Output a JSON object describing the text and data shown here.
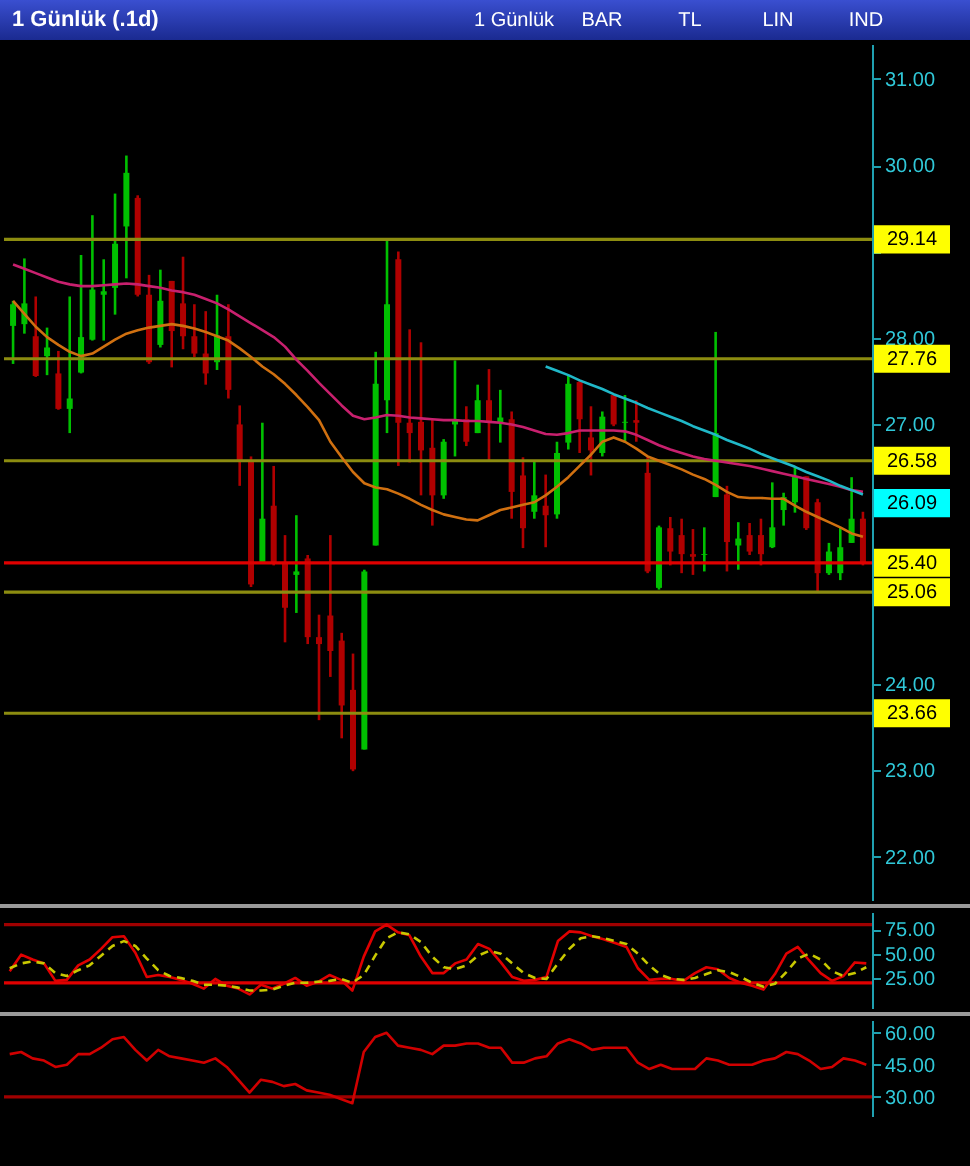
{
  "chart_data": [
    {
      "type": "candlestick",
      "title": "1 Günlük (.1d)",
      "annotations": [
        "1 Günlük",
        "BAR",
        "TL",
        "LIN",
        "IND",
        {
          "text": "26.09",
          "y": 26.09
        }
      ],
      "categories": [
        null,
        null,
        null,
        null,
        null,
        null,
        null,
        null,
        null,
        null,
        null,
        null,
        null,
        null,
        null,
        null,
        null,
        null,
        null,
        null,
        null,
        null,
        null,
        null,
        null,
        null,
        null,
        null,
        null,
        null,
        null,
        null,
        null,
        null,
        null,
        null,
        null,
        null,
        null,
        null,
        null,
        null,
        null,
        null,
        null,
        null,
        null,
        null,
        null,
        null,
        null,
        null,
        null,
        null,
        null,
        null,
        null,
        null,
        null,
        null,
        null,
        null,
        null,
        null,
        null,
        null,
        null,
        null,
        null,
        null,
        null,
        null,
        null,
        null,
        null,
        null
      ],
      "ohlc": [
        [
          28.14,
          28.43,
          27.7,
          28.39
        ],
        [
          28.16,
          28.92,
          28.05,
          28.4
        ],
        [
          28.02,
          28.48,
          27.55,
          27.56
        ],
        [
          27.79,
          28.12,
          27.57,
          27.89
        ],
        [
          27.59,
          27.85,
          27.17,
          27.18
        ],
        [
          27.18,
          28.48,
          26.9,
          27.3
        ],
        [
          27.6,
          28.96,
          27.59,
          28.01
        ],
        [
          27.98,
          29.42,
          27.97,
          28.56
        ],
        [
          28.5,
          28.91,
          27.97,
          28.54
        ],
        [
          28.58,
          29.67,
          28.27,
          29.09
        ],
        [
          29.29,
          30.11,
          28.69,
          29.91
        ],
        [
          29.62,
          29.65,
          28.48,
          28.5
        ],
        [
          28.5,
          28.73,
          27.7,
          27.72
        ],
        [
          27.92,
          28.79,
          27.89,
          28.43
        ],
        [
          28.66,
          28.66,
          27.66,
          28.08
        ],
        [
          28.4,
          28.94,
          27.87,
          28.02
        ],
        [
          28.02,
          28.39,
          27.78,
          27.82
        ],
        [
          27.82,
          28.31,
          27.46,
          27.59
        ],
        [
          27.72,
          28.5,
          27.63,
          28.03
        ],
        [
          28.02,
          28.39,
          27.3,
          27.4
        ],
        [
          27.0,
          27.22,
          26.29,
          26.57
        ],
        [
          26.57,
          26.63,
          25.12,
          25.15
        ],
        [
          25.41,
          27.02,
          25.4,
          25.91
        ],
        [
          26.06,
          26.52,
          25.37,
          25.4
        ],
        [
          25.41,
          25.72,
          24.48,
          24.88
        ],
        [
          25.26,
          25.95,
          24.82,
          25.3
        ],
        [
          25.45,
          25.49,
          24.46,
          24.54
        ],
        [
          24.54,
          24.8,
          23.58,
          24.46
        ],
        [
          24.79,
          25.72,
          24.08,
          24.38
        ],
        [
          24.5,
          24.59,
          23.37,
          23.75
        ],
        [
          23.93,
          24.35,
          22.99,
          23.01
        ],
        [
          23.24,
          25.32,
          23.24,
          25.3
        ],
        [
          25.6,
          27.84,
          25.6,
          27.47
        ],
        [
          27.28,
          29.14,
          26.9,
          28.39
        ],
        [
          28.91,
          29.0,
          26.52,
          27.02
        ],
        [
          27.02,
          28.1,
          26.56,
          26.9
        ],
        [
          27.03,
          27.95,
          26.18,
          26.7
        ],
        [
          26.73,
          27.06,
          25.83,
          26.18
        ],
        [
          26.18,
          26.83,
          26.14,
          26.8
        ],
        [
          27.0,
          27.74,
          26.63,
          27.06
        ],
        [
          27.06,
          27.21,
          26.75,
          26.8
        ],
        [
          26.9,
          27.46,
          26.9,
          27.28
        ],
        [
          27.28,
          27.64,
          26.57,
          27.02
        ],
        [
          27.02,
          27.4,
          26.79,
          27.08
        ],
        [
          27.06,
          27.15,
          25.91,
          26.22
        ],
        [
          26.41,
          26.62,
          25.57,
          25.8
        ],
        [
          25.99,
          26.57,
          25.91,
          26.18
        ],
        [
          26.06,
          26.42,
          25.58,
          25.95
        ],
        [
          25.96,
          26.8,
          25.91,
          26.67
        ],
        [
          26.79,
          27.57,
          26.71,
          27.47
        ],
        [
          27.49,
          27.51,
          26.67,
          27.06
        ],
        [
          26.85,
          27.21,
          26.41,
          26.7
        ],
        [
          26.67,
          27.15,
          26.63,
          27.09
        ],
        [
          27.34,
          27.34,
          26.98,
          27.0
        ],
        [
          27.02,
          27.34,
          26.79,
          27.03
        ],
        [
          27.05,
          27.28,
          26.8,
          27.02
        ],
        [
          26.44,
          26.62,
          25.28,
          25.3
        ],
        [
          25.11,
          25.83,
          25.09,
          25.81
        ],
        [
          25.8,
          25.93,
          25.37,
          25.53
        ],
        [
          25.72,
          25.91,
          25.28,
          25.5
        ],
        [
          25.5,
          25.79,
          25.26,
          25.47
        ],
        [
          25.49,
          25.81,
          25.3,
          25.5
        ],
        [
          26.16,
          28.07,
          26.16,
          26.9
        ],
        [
          26.19,
          26.29,
          25.3,
          25.64
        ],
        [
          25.6,
          25.87,
          25.32,
          25.68
        ],
        [
          25.72,
          25.86,
          25.49,
          25.53
        ],
        [
          25.72,
          25.91,
          25.37,
          25.5
        ],
        [
          25.58,
          26.33,
          25.57,
          25.81
        ],
        [
          26.01,
          26.21,
          25.83,
          26.16
        ],
        [
          26.1,
          26.52,
          25.98,
          26.4
        ],
        [
          26.4,
          26.4,
          25.78,
          25.8
        ],
        [
          26.1,
          26.14,
          25.07,
          25.28
        ],
        [
          25.28,
          25.63,
          25.26,
          25.53
        ],
        [
          25.28,
          25.81,
          25.2,
          25.58
        ],
        [
          25.63,
          26.39,
          25.63,
          25.91
        ],
        [
          25.91,
          25.99,
          25.37,
          25.4
        ]
      ],
      "colors": [
        "#00c000",
        "#00c000",
        "#b00000",
        "#00c000",
        "#b00000",
        "#00c000",
        "#00c000",
        "#00c000",
        "#00c000",
        "#00c000",
        "#00c000",
        "#b00000",
        "#b00000",
        "#00c000",
        "#b00000",
        "#b00000",
        "#b00000",
        "#b00000",
        "#00c000",
        "#b00000",
        "#b00000",
        "#b00000",
        "#00c000",
        "#b00000",
        "#b00000",
        "#00c000",
        "#b00000",
        "#b00000",
        "#b00000",
        "#b00000",
        "#b00000",
        "#00c000",
        "#00c000",
        "#00c000",
        "#b00000",
        "#b00000",
        "#b00000",
        "#b00000",
        "#00c000",
        "#00c000",
        "#b00000",
        "#00c000",
        "#b00000",
        "#00c000",
        "#b00000",
        "#b00000",
        "#00c000",
        "#b00000",
        "#00c000",
        "#00c000",
        "#b00000",
        "#b00000",
        "#00c000",
        "#b00000",
        "#00c000",
        "#b00000",
        "#b00000",
        "#00c000",
        "#b00000",
        "#b00000",
        "#b00000",
        "#00c000",
        "#00c000",
        "#b00000",
        "#00c000",
        "#b00000",
        "#b00000",
        "#00c000",
        "#00c000",
        "#00c000",
        "#b00000",
        "#b00000",
        "#00c000",
        "#00c000",
        "#00c000",
        "#b00000"
      ],
      "series": [
        {
          "type": "line",
          "color": "#c8206e",
          "values": [
            28.85,
            28.8,
            28.75,
            28.7,
            28.65,
            28.62,
            28.6,
            28.6,
            28.61,
            28.62,
            28.63,
            28.62,
            28.6,
            28.58,
            28.55,
            28.53,
            28.5,
            28.45,
            28.4,
            28.33,
            28.25,
            28.17,
            28.09,
            28.01,
            27.9,
            27.75,
            27.62,
            27.48,
            27.35,
            27.22,
            27.1,
            27.06,
            27.08,
            27.11,
            27.1,
            27.08,
            27.07,
            27.06,
            27.05,
            27.05,
            27.04,
            27.04,
            27.03,
            27.02,
            27.0,
            26.97,
            26.93,
            26.89,
            26.88,
            26.9,
            26.93,
            26.93,
            26.93,
            26.93,
            26.92,
            26.88,
            26.82,
            26.76,
            26.71,
            26.67,
            26.63,
            26.6,
            26.58,
            26.56,
            26.54,
            26.52,
            26.49,
            26.46,
            26.43,
            26.4,
            26.37,
            26.34,
            26.31,
            26.28,
            26.24,
            26.22
          ]
        },
        {
          "type": "line",
          "color": "#d07010",
          "values": [
            28.43,
            28.28,
            28.13,
            28.01,
            27.92,
            27.84,
            27.79,
            27.82,
            27.9,
            27.98,
            28.05,
            28.09,
            28.12,
            28.14,
            28.16,
            28.14,
            28.11,
            28.07,
            28.02,
            27.97,
            27.88,
            27.78,
            27.67,
            27.58,
            27.47,
            27.34,
            27.2,
            27.05,
            26.8,
            26.62,
            26.45,
            26.32,
            26.27,
            26.25,
            26.2,
            26.14,
            26.07,
            26.01,
            25.96,
            25.93,
            25.9,
            25.89,
            25.95,
            26.01,
            26.04,
            26.07,
            26.1,
            26.18,
            26.28,
            26.39,
            26.52,
            26.65,
            26.8,
            26.85,
            26.8,
            26.72,
            26.63,
            26.58,
            26.53,
            26.48,
            26.42,
            26.37,
            26.3,
            26.22,
            26.16,
            26.15,
            26.15,
            26.14,
            26.14,
            26.06,
            25.99,
            25.93,
            25.87,
            25.81,
            25.74,
            25.7
          ]
        },
        {
          "type": "line",
          "color": "#20b8c8",
          "values": [
            null,
            null,
            null,
            null,
            null,
            null,
            null,
            null,
            null,
            null,
            null,
            null,
            null,
            null,
            null,
            null,
            null,
            null,
            null,
            null,
            null,
            null,
            null,
            null,
            null,
            null,
            null,
            null,
            null,
            null,
            null,
            null,
            null,
            null,
            null,
            null,
            null,
            null,
            null,
            null,
            null,
            null,
            null,
            null,
            null,
            null,
            null,
            27.67,
            27.62,
            27.57,
            27.51,
            27.46,
            27.41,
            27.35,
            27.3,
            27.25,
            27.19,
            27.14,
            27.09,
            27.04,
            26.98,
            26.93,
            26.88,
            26.82,
            26.77,
            26.72,
            26.66,
            26.61,
            26.56,
            26.51,
            26.45,
            26.4,
            26.35,
            26.29,
            26.24,
            26.19
          ]
        }
      ],
      "ref_lines": [
        {
          "axis": "y",
          "value": 29.14,
          "label": "29.14",
          "color": "#8c8c10"
        },
        {
          "axis": "y",
          "value": 27.76,
          "label": "27.76",
          "color": "#8c8c10"
        },
        {
          "axis": "y",
          "value": 26.58,
          "label": "26.58",
          "color": "#8c8c10"
        },
        {
          "axis": "y",
          "value": 25.06,
          "label": "25.06",
          "color": "#8c8c10"
        },
        {
          "axis": "y",
          "value": 23.66,
          "label": "23.66",
          "color": "#8c8c10"
        },
        {
          "axis": "y",
          "value": 25.4,
          "label": "25.40",
          "color": "#e00000"
        }
      ],
      "ylim": [
        21.5,
        31.4
      ],
      "yticks": [
        {
          "value": 22,
          "label": "22.00"
        },
        {
          "value": 23,
          "label": "23.00"
        },
        {
          "value": 24,
          "label": "24.00"
        },
        {
          "value": 25,
          "label": null
        },
        {
          "value": 26,
          "label": null
        },
        {
          "value": 27,
          "label": "27.00"
        },
        {
          "value": 28,
          "label": "28.00"
        },
        {
          "value": 29,
          "label": null
        },
        {
          "value": 30,
          "label": "30.00"
        },
        {
          "value": 31,
          "label": "31.00"
        }
      ],
      "tick_labels": "y"
    },
    {
      "type": "line",
      "categories": [
        null,
        null,
        null,
        null,
        null,
        null,
        null,
        null,
        null,
        null,
        null,
        null,
        null,
        null,
        null,
        null,
        null,
        null,
        null,
        null,
        null,
        null,
        null,
        null,
        null,
        null,
        null,
        null,
        null,
        null,
        null,
        null,
        null,
        null,
        null,
        null,
        null,
        null,
        null,
        null,
        null,
        null,
        null,
        null,
        null,
        null,
        null,
        null,
        null,
        null,
        null,
        null,
        null,
        null,
        null,
        null,
        null,
        null,
        null,
        null,
        null,
        null,
        null,
        null,
        null,
        null,
        null,
        null,
        null,
        null,
        null,
        null,
        null,
        null,
        null,
        null
      ],
      "series": [
        {
          "color": "#e00000",
          "values": [
            32,
            49,
            44,
            40,
            22,
            23,
            38,
            44,
            55,
            67,
            68,
            51,
            26,
            28,
            26,
            23,
            19,
            14,
            24,
            17,
            14,
            8,
            18,
            14,
            19,
            25,
            17,
            21,
            28,
            23,
            12,
            47,
            73,
            80,
            72,
            69,
            47,
            30,
            30,
            40,
            44,
            60,
            55,
            41,
            26,
            22,
            23,
            26,
            63,
            73,
            72,
            68,
            65,
            61,
            57,
            35,
            23,
            24,
            24,
            22,
            30,
            36,
            34,
            25,
            20,
            17,
            13,
            29,
            50,
            57,
            43,
            30,
            22,
            27,
            41,
            40
          ]
        },
        {
          "color": "#c8c800",
          "line_style": "dashed",
          "values": [
            35,
            40,
            42,
            40,
            30,
            27,
            33,
            38,
            48,
            58,
            63,
            58,
            45,
            33,
            27,
            25,
            22,
            18,
            18,
            17,
            15,
            12,
            12,
            13,
            17,
            20,
            20,
            21,
            22,
            24,
            20,
            28,
            48,
            66,
            72,
            70,
            62,
            47,
            36,
            34,
            38,
            48,
            53,
            50,
            40,
            30,
            25,
            24,
            40,
            55,
            66,
            68,
            66,
            63,
            60,
            50,
            38,
            28,
            24,
            23,
            25,
            29,
            33,
            31,
            26,
            20,
            16,
            19,
            31,
            45,
            50,
            44,
            32,
            27,
            30,
            36
          ]
        }
      ],
      "ref_lines": [
        {
          "axis": "y",
          "value": 80,
          "color": "#a00000"
        },
        {
          "axis": "y",
          "value": 20,
          "color": "#e00000"
        }
      ],
      "ylim": [
        -6,
        93
      ],
      "yticks": [
        {
          "value": 25,
          "label": "25.00"
        },
        {
          "value": 50,
          "label": "50.00"
        },
        {
          "value": 75,
          "label": "75.00"
        }
      ],
      "tick_labels": "y"
    },
    {
      "type": "line",
      "categories": [
        null,
        null,
        null,
        null,
        null,
        null,
        null,
        null,
        null,
        null,
        null,
        null,
        null,
        null,
        null,
        null,
        null,
        null,
        null,
        null,
        null,
        null,
        null,
        null,
        null,
        null,
        null,
        null,
        null,
        null,
        null,
        null,
        null,
        null,
        null,
        null,
        null,
        null,
        null,
        null,
        null,
        null,
        null,
        null,
        null,
        null,
        null,
        null,
        null,
        null,
        null,
        null,
        null,
        null,
        null,
        null,
        null,
        null,
        null,
        null,
        null,
        null,
        null,
        null,
        null,
        null,
        null,
        null,
        null,
        null,
        null,
        null,
        null,
        null,
        null,
        null
      ],
      "series": [
        {
          "color": "#d00000",
          "values": [
            50,
            51,
            48,
            47,
            44,
            45,
            50,
            50,
            53,
            57,
            58,
            52,
            47,
            52,
            49,
            48,
            47,
            46,
            48,
            44,
            38,
            32,
            38,
            37,
            35,
            36,
            33,
            32,
            31,
            29,
            27,
            51,
            58,
            60,
            54,
            53,
            52,
            50,
            54,
            54,
            55,
            55,
            53,
            53,
            46,
            46,
            48,
            49,
            55,
            57,
            55,
            52,
            53,
            53,
            53,
            46,
            43,
            45,
            43,
            43,
            43,
            48,
            47,
            45,
            45,
            45,
            47,
            48,
            51,
            50,
            47,
            43,
            44,
            48,
            47,
            45
          ]
        }
      ],
      "ref_lines": [
        {
          "axis": "y",
          "value": 30,
          "color": "#a00000"
        }
      ],
      "ylim": [
        21,
        66
      ],
      "yticks": [
        {
          "value": 30,
          "label": "30.00"
        },
        {
          "value": 45,
          "label": "45.00"
        },
        {
          "value": 60,
          "label": "60.00"
        }
      ],
      "tick_labels": "y"
    }
  ]
}
